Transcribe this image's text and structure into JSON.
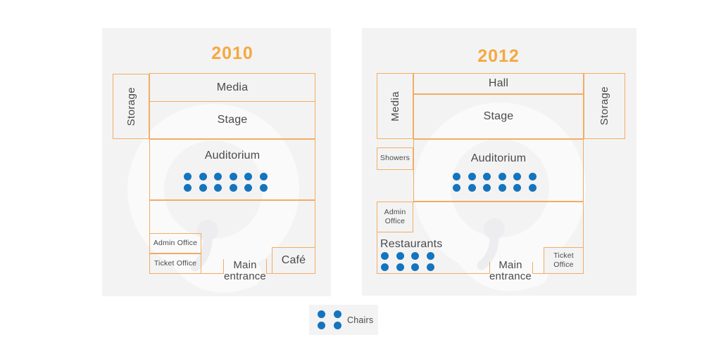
{
  "colors": {
    "accent_border": "#F2AC61",
    "title_orange": "#F4A93F",
    "chair_blue": "#1474BE",
    "text_dark": "#4A4A4A",
    "panel_bg": "#F3F3F4"
  },
  "legend": {
    "label": "Chairs",
    "chairs": {
      "cols": 2,
      "rows": 2
    }
  },
  "plans": [
    {
      "year": "2010",
      "rooms": {
        "storage": "Storage",
        "media": "Media",
        "stage": "Stage",
        "auditorium": "Auditorium",
        "admin_office": "Admin Office",
        "ticket_office": "Ticket Office",
        "cafe": "Café",
        "entrance_line1": "Main",
        "entrance_line2": "entrance"
      },
      "auditorium_chairs": {
        "cols": 6,
        "rows": 2
      }
    },
    {
      "year": "2012",
      "rooms": {
        "media": "Media",
        "hall": "Hall",
        "stage": "Stage",
        "storage": "Storage",
        "showers": "Showers",
        "auditorium": "Auditorium",
        "admin_office": "Admin Office",
        "restaurants": "Restaurants",
        "ticket_office": "Ticket Office",
        "entrance_line1": "Main",
        "entrance_line2": "entrance"
      },
      "auditorium_chairs": {
        "cols": 6,
        "rows": 2
      },
      "restaurant_chairs": {
        "cols": 4,
        "rows": 2
      }
    }
  ]
}
